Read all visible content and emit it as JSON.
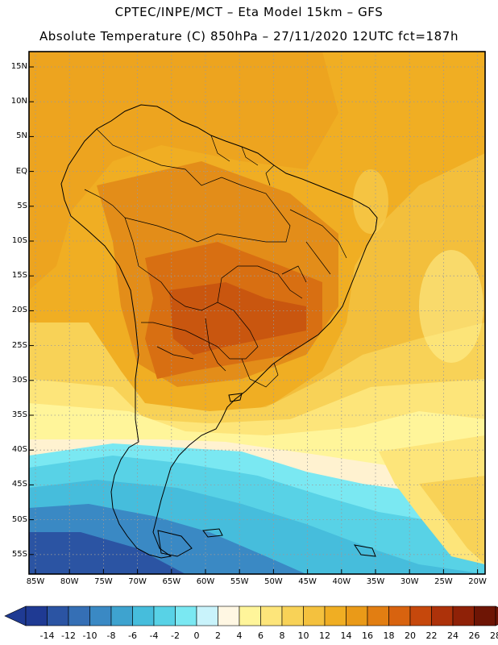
{
  "header": {
    "line1": "CPTEC/INPE/MCT –  Eta Model 15km – GFS",
    "line2": "Absolute Temperature (C) 850hPa – 27/11/2020 12UTC fct=187h"
  },
  "axes": {
    "lat_labels": [
      "15N",
      "10N",
      "5N",
      "EQ",
      "5S",
      "10S",
      "15S",
      "20S",
      "25S",
      "30S",
      "35S",
      "40S",
      "45S",
      "50S",
      "55S"
    ],
    "lon_labels": [
      "85W",
      "80W",
      "75W",
      "70W",
      "65W",
      "60W",
      "55W",
      "50W",
      "45W",
      "40W",
      "35W",
      "30W",
      "25W",
      "20W"
    ]
  },
  "colorbar": {
    "tick_labels": [
      "-14",
      "-12",
      "-10",
      "-8",
      "-6",
      "-4",
      "-2",
      "0",
      "2",
      "4",
      "6",
      "8",
      "10",
      "12",
      "14",
      "16",
      "18",
      "20",
      "22",
      "24",
      "26",
      "28"
    ],
    "colors": [
      "#1f3a93",
      "#2b54a3",
      "#356fb5",
      "#3a89c4",
      "#3ea3cf",
      "#46bddc",
      "#58d2e6",
      "#7ae8f2",
      "#c9f3fb",
      "#fff7e3",
      "#fff59a",
      "#fde57a",
      "#f8d257",
      "#f4c13e",
      "#f0ae23",
      "#ea9a18",
      "#e27e12",
      "#d8630f",
      "#c6480c",
      "#ad320a",
      "#8f2107",
      "#6e1505"
    ]
  },
  "map": {
    "variable": "850hPa temperature",
    "units": "C",
    "warm_core": "central Brazil / Paraguay (>24 C)",
    "cold_region": "southern Patagonia / Drake Passage (<-6 C)",
    "colors": {
      "ocean_deep_cold": "#2f62ad",
      "cold": "#3aa0cf",
      "cool": "#5fd0e5",
      "mild": "#fff0c0",
      "warm_yellow": "#f7c94e",
      "orange": "#f0ae23",
      "dark_orange": "#e08a18",
      "hot": "#cf5f10",
      "coastline": "#000000"
    }
  }
}
